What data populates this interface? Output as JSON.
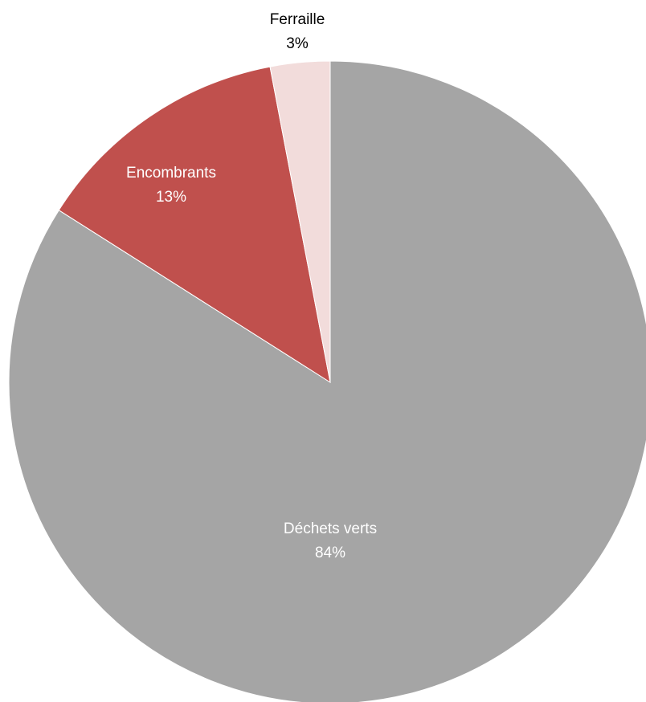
{
  "chart_data": {
    "type": "pie",
    "title": "",
    "slices": [
      {
        "label": "Déchets verts",
        "value": 84,
        "value_label": "84%",
        "color": "#a5a5a5",
        "label_color": "#ffffff"
      },
      {
        "label": "Encombrants",
        "value": 13,
        "value_label": "13%",
        "color": "#c0504d",
        "label_color": "#ffffff"
      },
      {
        "label": "Ferraille",
        "value": 3,
        "value_label": "3%",
        "color": "#f2dcdb",
        "label_color": "#000000"
      }
    ],
    "start_angle": "12 o'clock",
    "direction": "clockwise",
    "legend": "none"
  }
}
